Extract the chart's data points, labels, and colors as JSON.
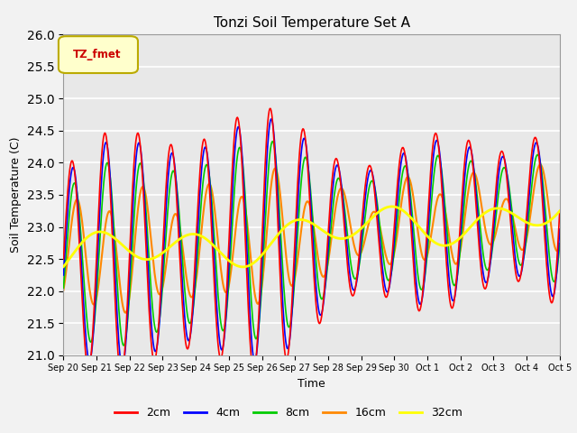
{
  "title": "Tonzi Soil Temperature Set A",
  "ylabel": "Soil Temperature (C)",
  "xlabel": "Time",
  "ylim": [
    21.0,
    26.0
  ],
  "yticks": [
    21.0,
    21.5,
    22.0,
    22.5,
    23.0,
    23.5,
    24.0,
    24.5,
    25.0,
    25.5,
    26.0
  ],
  "legend_label": "TZ_fmet",
  "plot_bg_color": "#e8e8e8",
  "fig_bg_color": "#f2f2f2",
  "grid_color": "#ffffff",
  "line_colors": {
    "2cm": "#ff0000",
    "4cm": "#0000ff",
    "8cm": "#00cc00",
    "16cm": "#ff8800",
    "32cm": "#ffff00"
  },
  "line_widths": {
    "2cm": 1.2,
    "4cm": 1.2,
    "8cm": 1.2,
    "16cm": 1.5,
    "32cm": 2.0
  },
  "xtick_labels": [
    "Sep 20",
    "Sep 21",
    "Sep 22",
    "Sep 23",
    "Sep 24",
    "Sep 25",
    "Sep 26",
    "Sep 27",
    "Sep 28",
    "Sep 29",
    "Sep 30",
    "Oct 1",
    "Oct 2",
    "Oct 3",
    "Oct 4",
    "Oct 5"
  ],
  "n_days": 15,
  "pts_per_day": 48
}
